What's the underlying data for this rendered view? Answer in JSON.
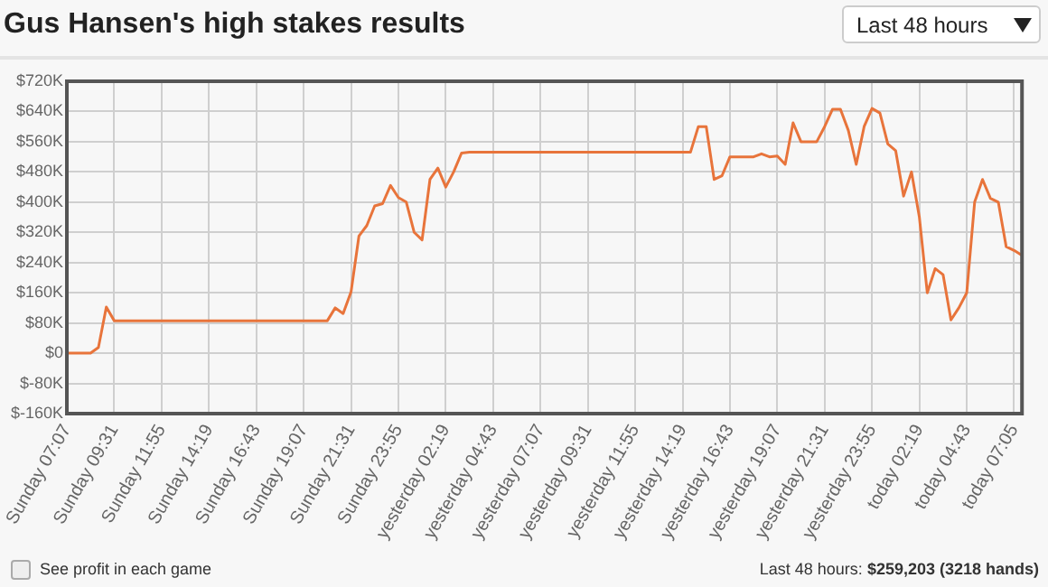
{
  "chart_data": {
    "type": "line",
    "title": "Gus Hansen's high stakes results",
    "annotations": [
      "Last 48 hours",
      "See profit in each game",
      "Last 48 hours:",
      "$259,203 (3218 hands)"
    ],
    "color": "#e8743b",
    "grid": true,
    "categories": [
      "Sunday 07:07",
      null,
      null,
      null,
      null,
      null,
      "Sunday 09:31",
      null,
      null,
      null,
      null,
      null,
      "Sunday 11:55",
      null,
      null,
      null,
      null,
      null,
      "Sunday 14:19",
      null,
      null,
      null,
      null,
      null,
      "Sunday 16:43",
      null,
      null,
      null,
      null,
      null,
      "Sunday 19:07",
      null,
      null,
      null,
      null,
      null,
      "Sunday 21:31",
      null,
      null,
      null,
      null,
      null,
      "Sunday 23:55",
      null,
      null,
      null,
      null,
      null,
      "yesterday 02:19",
      null,
      null,
      null,
      null,
      null,
      "yesterday 04:43",
      null,
      null,
      null,
      null,
      null,
      "yesterday 07:07",
      null,
      null,
      null,
      null,
      null,
      "yesterday 09:31",
      null,
      null,
      null,
      null,
      null,
      "yesterday 11:55",
      null,
      null,
      null,
      null,
      null,
      "yesterday 14:19",
      null,
      null,
      null,
      null,
      null,
      "yesterday 16:43",
      null,
      null,
      null,
      null,
      null,
      "yesterday 19:07",
      null,
      null,
      null,
      null,
      null,
      "yesterday 21:31",
      null,
      null,
      null,
      null,
      null,
      "yesterday 23:55",
      null,
      null,
      null,
      null,
      null,
      "today 02:19",
      null,
      null,
      null,
      null,
      null,
      "today 04:43",
      null,
      null,
      null,
      null,
      null,
      "today 07:05",
      null
    ],
    "ylim": [
      -160,
      720
    ],
    "yticks": [
      {
        "value": -160,
        "label": "$-160K"
      },
      {
        "value": -80,
        "label": "$-80K"
      },
      {
        "value": 0,
        "label": "$0"
      },
      {
        "value": 80,
        "label": "$80K"
      },
      {
        "value": 160,
        "label": "$160K"
      },
      {
        "value": 240,
        "label": "$240K"
      },
      {
        "value": 320,
        "label": "$320K"
      },
      {
        "value": 400,
        "label": "$400K"
      },
      {
        "value": 480,
        "label": "$480K"
      },
      {
        "value": 560,
        "label": "$560K"
      },
      {
        "value": 640,
        "label": "$640K"
      },
      {
        "value": 720,
        "label": "$720K"
      }
    ],
    "values": [
      0,
      0,
      0,
      0,
      15,
      122,
      86,
      86,
      86,
      86,
      86,
      86,
      86,
      86,
      86,
      86,
      86,
      86,
      86,
      86,
      86,
      86,
      86,
      86,
      86,
      86,
      86,
      86,
      86,
      86,
      86,
      86,
      86,
      86,
      120,
      105,
      162,
      310,
      338,
      390,
      396,
      444,
      412,
      400,
      320,
      300,
      460,
      490,
      440,
      480,
      530,
      532,
      532,
      532,
      532,
      532,
      532,
      532,
      532,
      532,
      532,
      532,
      532,
      532,
      532,
      532,
      532,
      532,
      532,
      532,
      532,
      532,
      532,
      532,
      532,
      532,
      532,
      532,
      532,
      532,
      600,
      600,
      460,
      470,
      520,
      520,
      520,
      520,
      528,
      520,
      522,
      500,
      610,
      560,
      560,
      560,
      600,
      646,
      646,
      590,
      500,
      600,
      648,
      636,
      554,
      536,
      416,
      480,
      360,
      160,
      224,
      208,
      88,
      120,
      160,
      400,
      460,
      410,
      400,
      282,
      272,
      259
    ]
  }
}
